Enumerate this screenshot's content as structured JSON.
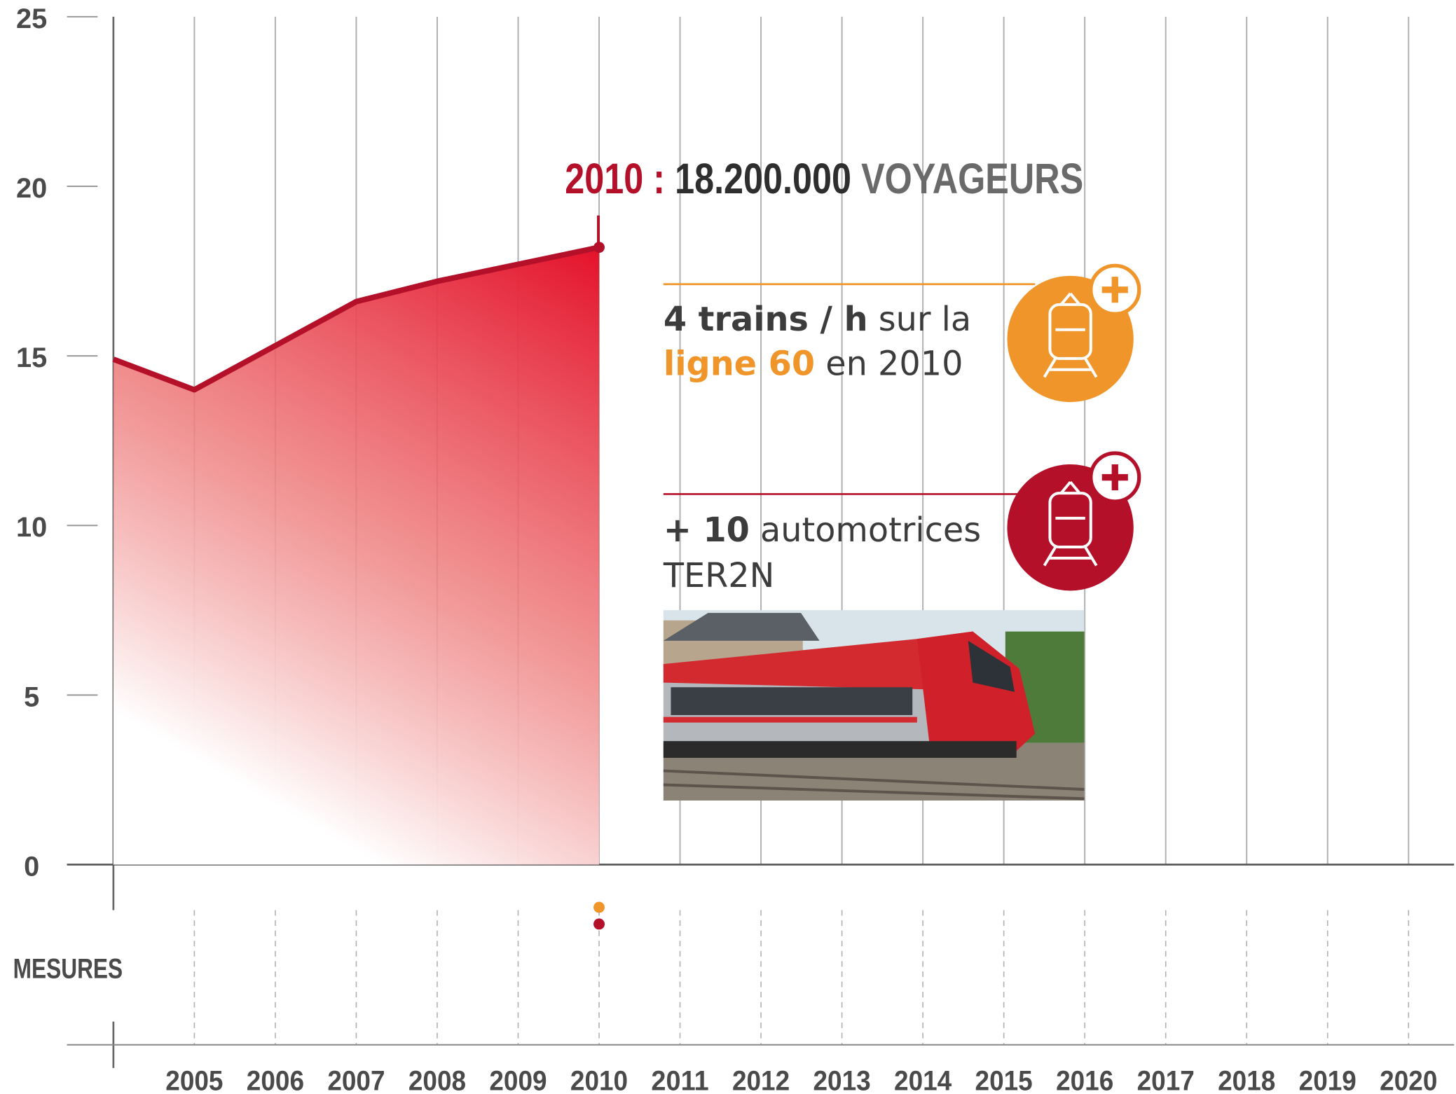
{
  "chart_data": {
    "type": "area",
    "x": [
      2004,
      2005,
      2006,
      2007,
      2008,
      2009,
      2010
    ],
    "values": [
      14.9,
      14.0,
      15.3,
      16.6,
      17.2,
      17.7,
      18.2
    ],
    "color": "#e4122b",
    "line_color": "#b5102a",
    "xlim": [
      2004,
      2020
    ],
    "xticks": [
      2005,
      2006,
      2007,
      2008,
      2009,
      2010,
      2011,
      2012,
      2013,
      2014,
      2015,
      2016,
      2017,
      2018,
      2019,
      2020
    ],
    "ylim": [
      0,
      25
    ],
    "yticks": [
      0,
      5,
      10,
      15,
      20,
      25
    ],
    "grid": true,
    "annotation": {
      "year": "2010",
      "sep": ":",
      "value": "18.200.000",
      "unit": "VOYAGEURS"
    },
    "measures_label": "MESURES",
    "measures": [
      {
        "x": 2010,
        "color": "#f0952a"
      },
      {
        "x": 2010,
        "color": "#b5102a"
      }
    ],
    "cards": [
      {
        "bold": "4 trains / h",
        "text": "sur la",
        "highlight": "ligne 60",
        "text2": "en 2010",
        "color": "#f0952a"
      },
      {
        "bold": "+ 10",
        "text": "automotrices",
        "line2": "TER2N",
        "color": "#b5102a"
      }
    ]
  }
}
